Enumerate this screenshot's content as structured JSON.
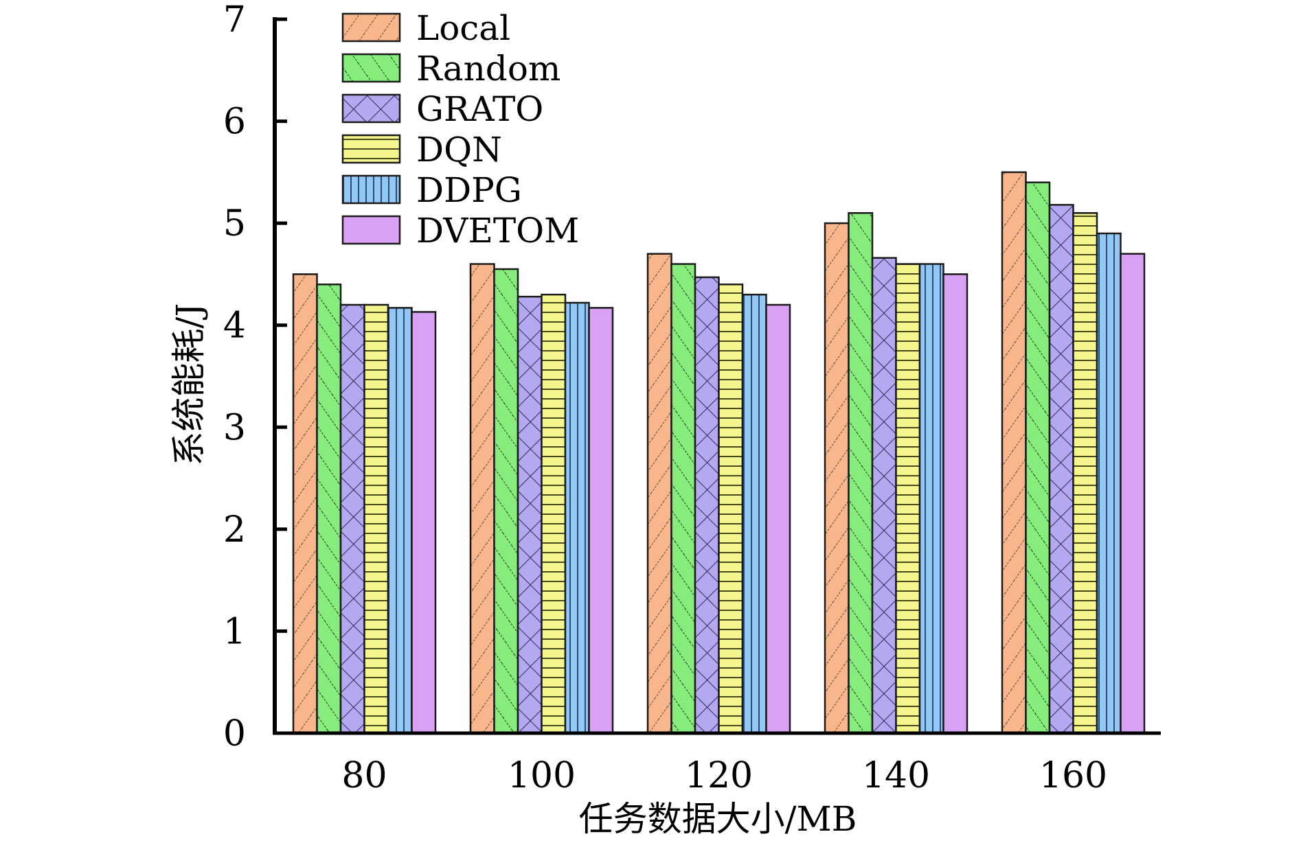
{
  "chart_data": {
    "type": "bar",
    "title": "",
    "xlabel": "任务数据大小/MB",
    "ylabel": "系统能耗/J",
    "categories": [
      "80",
      "100",
      "120",
      "140",
      "160"
    ],
    "ylim": [
      0,
      7
    ],
    "yticks": [
      "0",
      "1",
      "2",
      "3",
      "4",
      "5",
      "6",
      "7"
    ],
    "grid": false,
    "legend_position": "top-left",
    "series": [
      {
        "name": "Local",
        "color": "#f9b68c",
        "pattern": "diag-up",
        "values": [
          4.5,
          4.6,
          4.7,
          5.0,
          5.5
        ]
      },
      {
        "name": "Random",
        "color": "#86ec7c",
        "pattern": "diag-down",
        "values": [
          4.4,
          4.55,
          4.6,
          5.1,
          5.4
        ]
      },
      {
        "name": "GRATO",
        "color": "#b4a8f0",
        "pattern": "crosshatch",
        "values": [
          4.2,
          4.28,
          4.47,
          4.66,
          5.18
        ]
      },
      {
        "name": "DQN",
        "color": "#f6f68e",
        "pattern": "horizontal",
        "values": [
          4.2,
          4.3,
          4.4,
          4.6,
          5.1
        ]
      },
      {
        "name": "DDPG",
        "color": "#94c8f4",
        "pattern": "vertical",
        "values": [
          4.17,
          4.22,
          4.3,
          4.6,
          4.9
        ]
      },
      {
        "name": "DVETOM",
        "color": "#daa0f4",
        "pattern": "solid",
        "values": [
          4.13,
          4.17,
          4.2,
          4.5,
          4.7
        ]
      }
    ]
  }
}
